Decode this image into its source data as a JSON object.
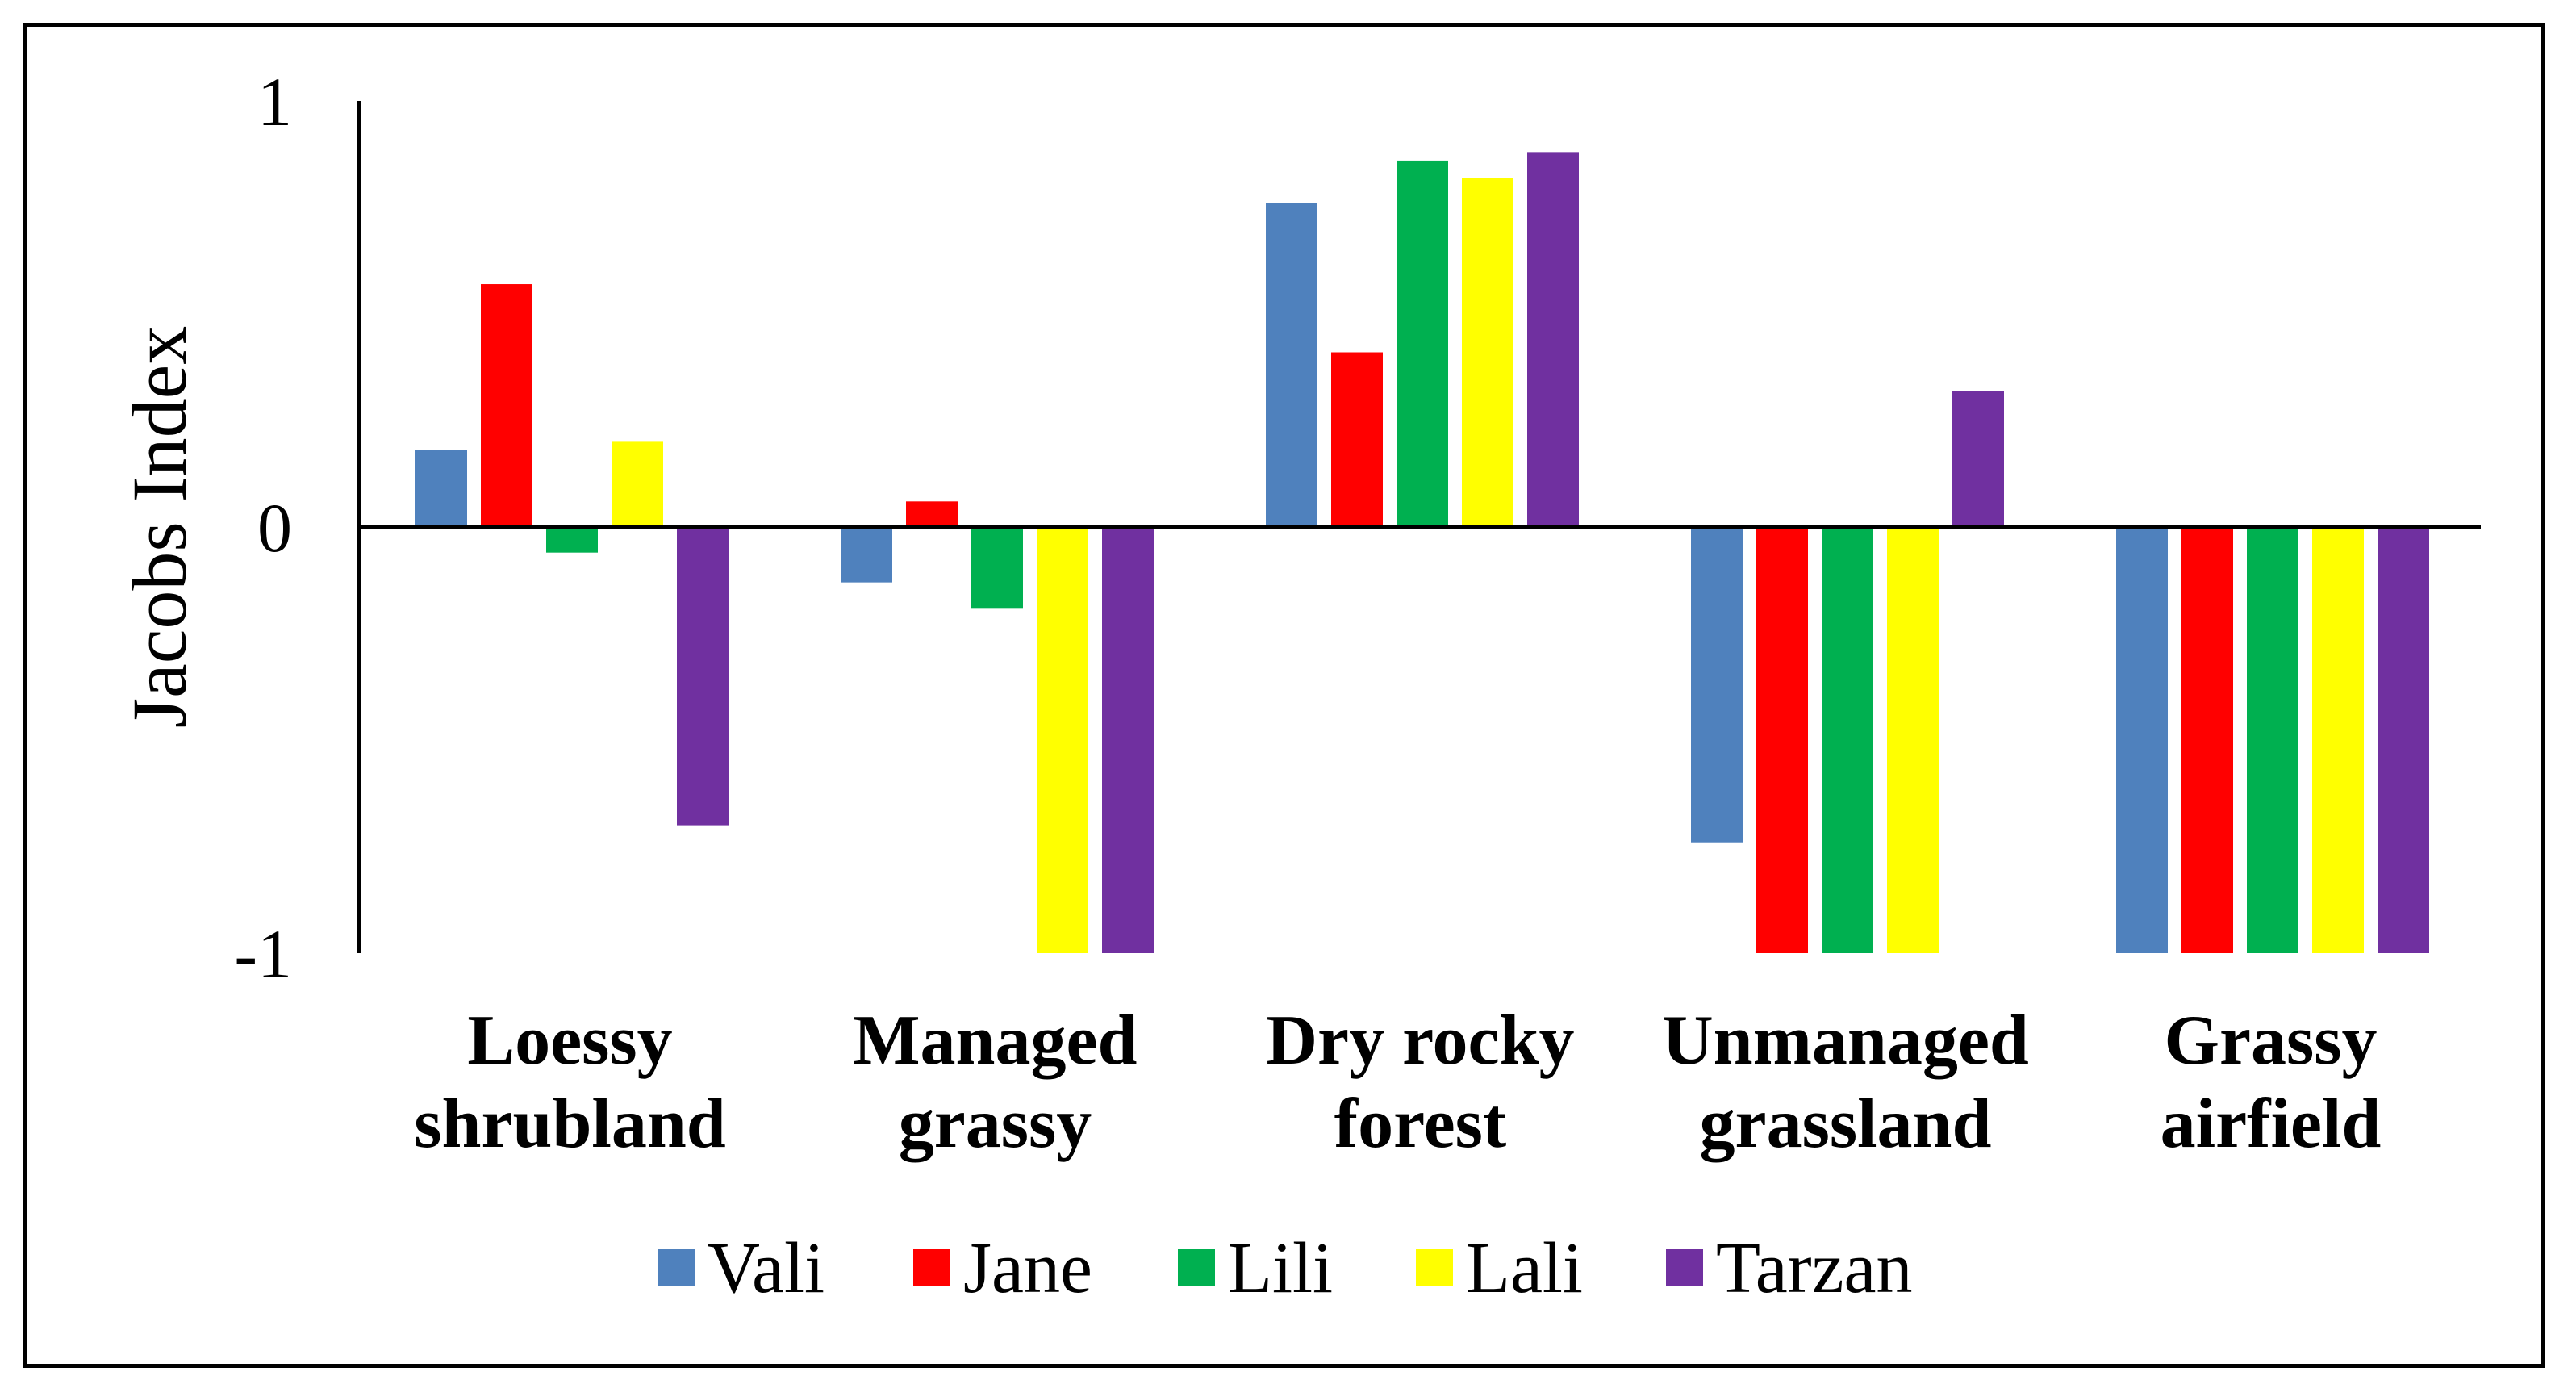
{
  "chart_data": {
    "type": "bar",
    "title": "",
    "xlabel": "",
    "ylabel": "Jacobs Index",
    "ylim": [
      -1,
      1
    ],
    "yticks": [
      "1",
      "0",
      "-1"
    ],
    "categories": [
      [
        "Loessy",
        "shrubland"
      ],
      [
        "Managed",
        "grassy"
      ],
      [
        "Dry rocky",
        "forest"
      ],
      [
        "Unmanaged",
        "grassland"
      ],
      [
        "Grassy",
        "airfield"
      ]
    ],
    "series": [
      {
        "name": "Vali",
        "color": "#4F81BD",
        "values": [
          0.18,
          -0.13,
          0.76,
          -0.74,
          -1.0
        ]
      },
      {
        "name": "Jane",
        "color": "#FF0000",
        "values": [
          0.57,
          0.06,
          0.41,
          -1.0,
          -1.0
        ]
      },
      {
        "name": "Lili",
        "color": "#00B050",
        "values": [
          -0.06,
          -0.19,
          0.86,
          -1.0,
          -1.0
        ]
      },
      {
        "name": "Lali",
        "color": "#FFFF00",
        "values": [
          0.2,
          -1.0,
          0.82,
          -1.0,
          -1.0
        ]
      },
      {
        "name": "Tarzan",
        "color": "#7030A0",
        "values": [
          -0.7,
          -1.0,
          0.88,
          0.32,
          -1.0
        ]
      }
    ],
    "legend_position": "bottom",
    "grid": false
  }
}
